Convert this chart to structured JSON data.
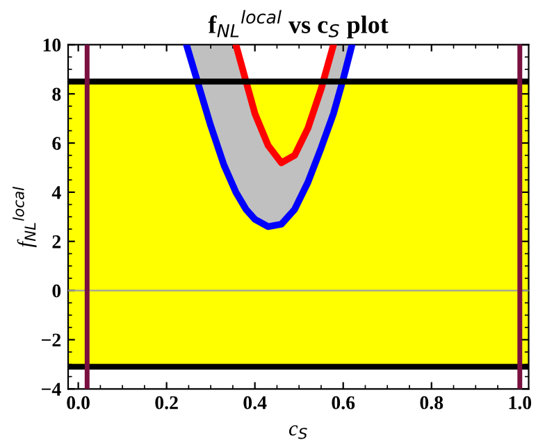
{
  "chart_data": {
    "type": "line",
    "title": "f$_{NL}$$^{local}$ vs c$_{S}$ plot",
    "xlabel": "c$_{S}$",
    "ylabel": "f$_{NL}$$^{local}$",
    "xlim": [
      -0.023,
      1.02
    ],
    "ylim": [
      -4,
      10
    ],
    "xticks": [
      {
        "value": 0,
        "label": "0.0"
      },
      0.2,
      0.4,
      0.6,
      0.8,
      {
        "value": 1,
        "label": "1.0"
      }
    ],
    "yticks": [
      {
        "value": -4,
        "label": "−4"
      },
      {
        "value": -2,
        "label": "−2"
      },
      0,
      2,
      4,
      6,
      8,
      10
    ],
    "grid": false,
    "legend": false,
    "marker": "none",
    "line_style": "solid",
    "bands": [
      {
        "axis": "y",
        "from": -3.1,
        "to": 8.4,
        "color": "#ffff00"
      }
    ],
    "series": [
      {
        "color": "#0000ff",
        "x": [
          0.245,
          0.27,
          0.3,
          0.33,
          0.357,
          0.38,
          0.4,
          0.43,
          0.46,
          0.49,
          0.52,
          0.55,
          0.578,
          0.6,
          0.62
        ],
        "values": [
          10,
          8.5,
          6.7,
          5.1,
          4.0,
          3.3,
          2.9,
          2.6,
          2.7,
          3.3,
          4.4,
          5.8,
          7.2,
          8.6,
          10
        ],
        "lower": [
          10,
          8.5,
          6.7,
          5.1,
          4.0,
          3.3,
          2.9,
          2.6,
          2.7,
          3.3,
          4.4,
          5.8,
          7.2,
          8.6,
          10
        ],
        "upper": [
          10,
          10,
          10,
          10,
          10,
          8.5,
          7.2,
          5.9,
          5.2,
          5.5,
          6.6,
          8.2,
          10,
          10,
          10
        ]
      },
      {
        "color": "#ff0000",
        "x": [
          0.357,
          0.38,
          0.4,
          0.43,
          0.46,
          0.49,
          0.52,
          0.55,
          0.578
        ],
        "values": [
          10,
          8.5,
          7.2,
          5.9,
          5.2,
          5.5,
          6.6,
          8.2,
          10
        ]
      }
    ],
    "ref_lines": [
      {
        "axis": "y",
        "value": 0,
        "color": "#a0a0a0"
      },
      {
        "axis": "y",
        "value": 8.5,
        "color": "#000000"
      },
      {
        "axis": "y",
        "value": -3.1,
        "color": "#000000"
      },
      {
        "axis": "x",
        "value": 0.02,
        "color": "#7a1040"
      },
      {
        "axis": "x",
        "value": 1.0,
        "color": "#7a1040"
      }
    ]
  }
}
